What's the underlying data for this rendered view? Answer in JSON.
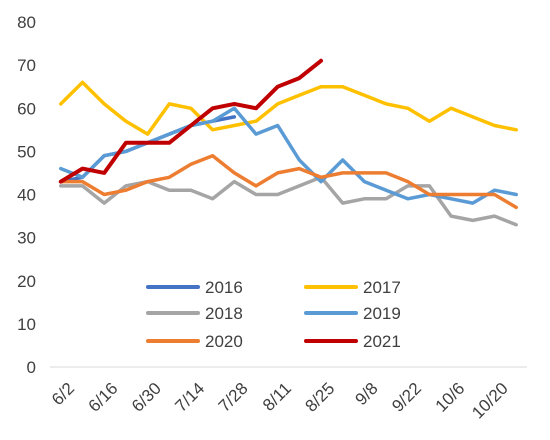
{
  "chart_data": {
    "type": "line",
    "title": "",
    "xlabel": "",
    "ylabel": "",
    "ylim": [
      0,
      80
    ],
    "yticks": [
      0,
      10,
      20,
      30,
      40,
      50,
      60,
      70,
      80
    ],
    "grid": false,
    "legend_position": "center-bottom",
    "x_tick_labels": [
      "6/2",
      "6/16",
      "6/30",
      "7/14",
      "7/28",
      "8/11",
      "8/25",
      "9/8",
      "9/22",
      "10/6",
      "10/20"
    ],
    "x_points": [
      "6/2",
      "6/9",
      "6/16",
      "6/23",
      "6/30",
      "7/7",
      "7/14",
      "7/21",
      "7/28",
      "8/4",
      "8/11",
      "8/18",
      "8/25",
      "9/1",
      "9/8",
      "9/15",
      "9/22",
      "9/29",
      "10/6",
      "10/13",
      "10/20",
      "10/27"
    ],
    "series": [
      {
        "name": "2016",
        "color": "#4472C4",
        "values": [
          43,
          44,
          49,
          50,
          52,
          54,
          56,
          57,
          58,
          null,
          null,
          null,
          null,
          null,
          null,
          null,
          null,
          null,
          null,
          null,
          null,
          null
        ]
      },
      {
        "name": "2017",
        "color": "#FFC000",
        "values": [
          61,
          66,
          61,
          57,
          54,
          61,
          60,
          55,
          56,
          57,
          61,
          63,
          65,
          65,
          63,
          61,
          60,
          57,
          60,
          58,
          56,
          55
        ]
      },
      {
        "name": "2018",
        "color": "#A5A5A5",
        "values": [
          42,
          42,
          38,
          42,
          43,
          41,
          41,
          39,
          43,
          40,
          40,
          42,
          44,
          38,
          39,
          39,
          42,
          42,
          35,
          34,
          35,
          33
        ]
      },
      {
        "name": "2019",
        "color": "#5B9BD5",
        "values": [
          46,
          44,
          49,
          50,
          52,
          54,
          56,
          57,
          60,
          54,
          56,
          48,
          43,
          48,
          43,
          41,
          39,
          40,
          39,
          38,
          41,
          40
        ]
      },
      {
        "name": "2020",
        "color": "#ED7D31",
        "values": [
          43,
          43,
          40,
          41,
          43,
          44,
          47,
          49,
          45,
          42,
          45,
          46,
          44,
          45,
          45,
          45,
          43,
          40,
          40,
          40,
          40,
          37
        ]
      },
      {
        "name": "2021",
        "color": "#C00000",
        "values": [
          43,
          46,
          45,
          52,
          52,
          52,
          56,
          60,
          61,
          60,
          65,
          67,
          71,
          null,
          null,
          null,
          null,
          null,
          null,
          null,
          null,
          null
        ]
      }
    ]
  }
}
